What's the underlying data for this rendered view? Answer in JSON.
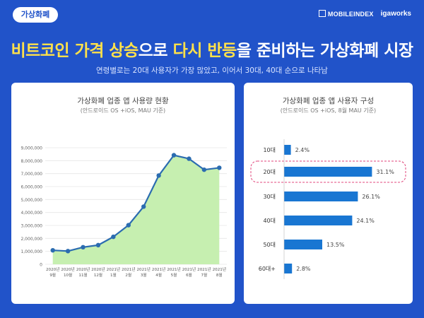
{
  "tag_label": "가상화폐",
  "brand_mobileindex": "MOBILEINDEX",
  "brand_igaworks": "igaworks",
  "headline": {
    "part1": "비트코인 가격 상승",
    "part2": "으로 ",
    "part3": "다시 반등",
    "part4": "을 준비하는 가상화폐 시장"
  },
  "subheadline": "연령별로는 20대 사용자가 가장 많았고, 이어서 30대, 40대 순으로 나타남",
  "colors": {
    "background": "#2153c9",
    "highlight": "#ffe14a",
    "line": "#2b6cb0",
    "area": "#c6efb0",
    "bar": "#1976d2",
    "dash_box": "#e0457b"
  },
  "chart_data": [
    {
      "type": "area",
      "title": "가상화폐 업종 앱 사용량 현황",
      "subtitle": "(안드로이드 OS +iOS, MAU 기준)",
      "x": [
        "2020년 9월",
        "2020년 10월",
        "2020년 11월",
        "2020년 12월",
        "2021년 1월",
        "2021년 2월",
        "2021년 3월",
        "2021년 4월",
        "2021년 5월",
        "2021년 6월",
        "2021년 7월",
        "2021년 8월"
      ],
      "x_tick_top": [
        "2020년",
        "2020년",
        "2020년",
        "2020년",
        "2021년",
        "2021년",
        "2021년",
        "2021년",
        "2021년",
        "2021년",
        "2021년",
        "2021년"
      ],
      "x_tick_bottom": [
        "9월",
        "10월",
        "11월",
        "12월",
        "1월",
        "2월",
        "3월",
        "4월",
        "5월",
        "6월",
        "7월",
        "8월"
      ],
      "series": [
        {
          "values": [
            1080000,
            1020000,
            1320000,
            1480000,
            2120000,
            3020000,
            4450000,
            6850000,
            8420000,
            8150000,
            7300000,
            7450000
          ]
        }
      ],
      "yticks": [
        0,
        1000000,
        2000000,
        3000000,
        4000000,
        5000000,
        6000000,
        7000000,
        8000000,
        9000000
      ],
      "ytick_labels": [
        "0",
        "1,000,000",
        "2,000,000",
        "3,000,000",
        "4,000,000",
        "5,000,000",
        "6,000,000",
        "7,000,000",
        "8,000,000",
        "9,000,000"
      ],
      "ylim": [
        0,
        9000000
      ],
      "grid": true
    },
    {
      "type": "bar",
      "orientation": "horizontal",
      "title": "가상화폐 업종 앱 사용자 구성",
      "subtitle": "(안드로이드 OS +iOS, 8월 MAU 기준)",
      "categories": [
        "10대",
        "20대",
        "30대",
        "40대",
        "50대",
        "60대+"
      ],
      "values": [
        2.4,
        31.1,
        26.1,
        24.1,
        13.5,
        2.8
      ],
      "value_labels": [
        "2.4%",
        "31.1%",
        "26.1%",
        "24.1%",
        "13.5%",
        "2.8%"
      ],
      "highlight_category": "20대",
      "xlim": [
        0,
        40
      ]
    }
  ]
}
